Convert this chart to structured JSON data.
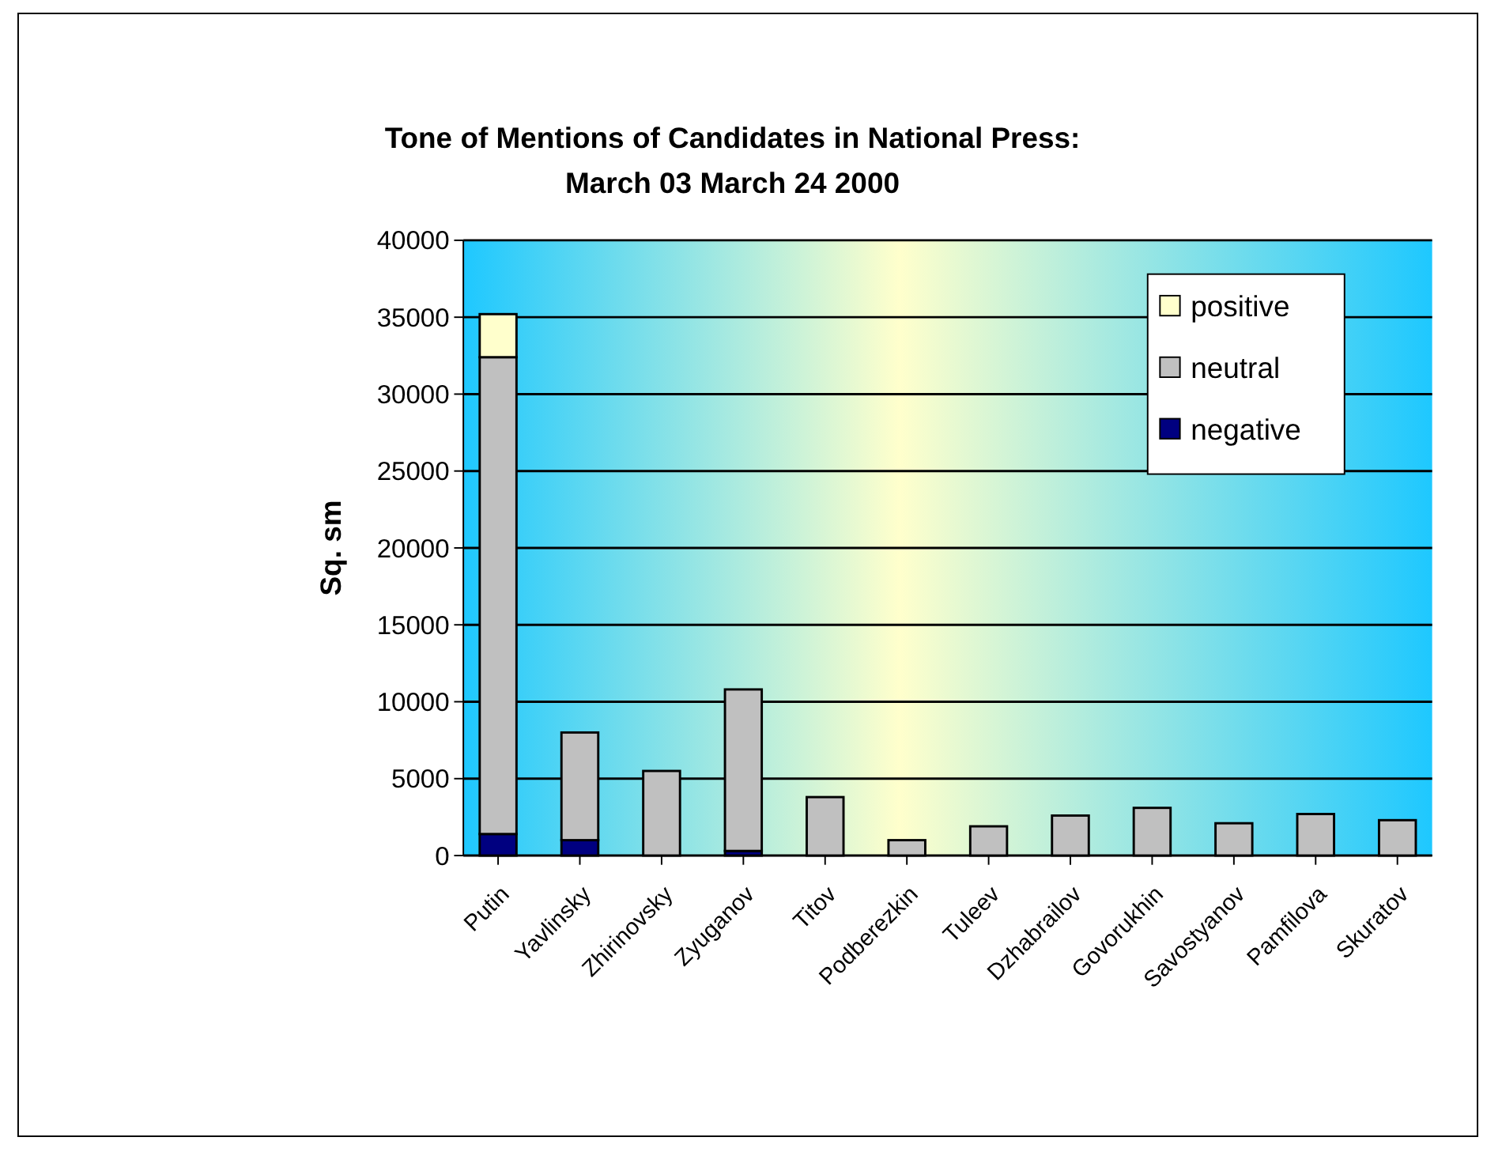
{
  "chart_data": {
    "type": "bar",
    "title": "Tone of Mentions of Candidates in National Press:",
    "subtitle": "March 03 March 24 2000",
    "ylabel": "Sq. sm",
    "categories": [
      "Putin",
      "Yavlinsky",
      "Zhirinovsky",
      "Zyuganov",
      "Titov",
      "Podberezkin",
      "Tuleev",
      "Dzhabrailov",
      "Govorukhin",
      "Savostyanov",
      "Pamfilova",
      "Skuratov"
    ],
    "stacked": true,
    "series": [
      {
        "name": "negative",
        "color": "#000080",
        "values": [
          1400,
          1000,
          null,
          300,
          0,
          0,
          0,
          0,
          0,
          0,
          0,
          0
        ]
      },
      {
        "name": "neutral",
        "color": "#c0c0c0",
        "values": [
          31000,
          7000,
          5500,
          10500,
          3800,
          1000,
          1900,
          2600,
          3100,
          2100,
          2700,
          2300
        ]
      },
      {
        "name": "positive",
        "color": "#ffffcc",
        "values": [
          2800,
          0,
          0,
          0,
          0,
          0,
          0,
          0,
          0,
          0,
          0,
          0
        ]
      }
    ],
    "ylim": [
      0,
      40000
    ],
    "yticks": [
      0,
      5000,
      10000,
      15000,
      20000,
      25000,
      30000,
      35000,
      40000
    ],
    "grid": "y",
    "legend": "top right"
  }
}
